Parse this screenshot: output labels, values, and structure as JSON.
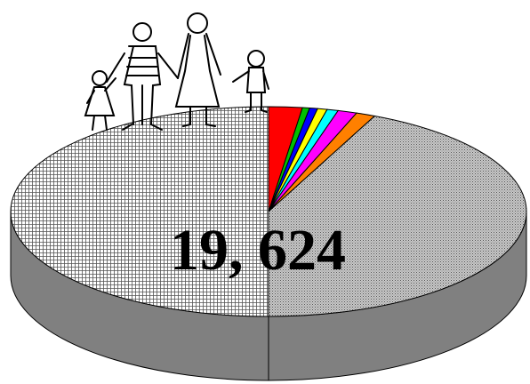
{
  "chart_data": {
    "type": "pie",
    "title": "19, 624",
    "values": [
      2.1,
      0.45,
      0.5,
      0.6,
      0.7,
      1.2,
      1.2,
      43.25,
      50
    ],
    "colors": [
      "#ff0000",
      "#00c000",
      "#0000ff",
      "#ffff00",
      "#00ffff",
      "#ff00ff",
      "#ff8000",
      "gray-dots",
      "grid-hatch"
    ],
    "three_d": true
  }
}
